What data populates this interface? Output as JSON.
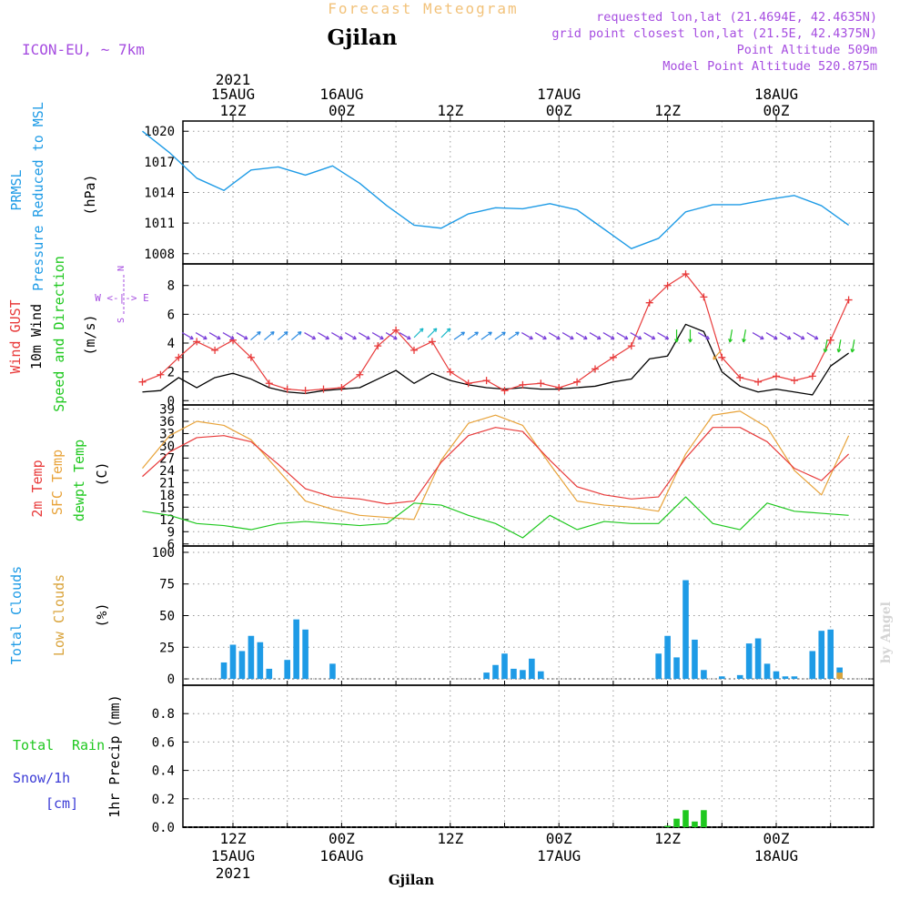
{
  "header": {
    "product_title": "Forecast Meteogram",
    "location": "Gjilan",
    "model": "ICON-EU, ~ 7km",
    "requested": "requested lon,lat (21.4694E, 42.4635N)",
    "grid_point": "grid point closest lon,lat (21.5E, 42.4375N)",
    "point_alt": "Point Altitude 509m",
    "model_alt": "Model Point Altitude 520.875m",
    "watermark": "by Angel",
    "bottom_label": "Gjilan"
  },
  "time_axis": {
    "year": "2021",
    "top_ticks": [
      {
        "hour": 12,
        "t1": "15AUG",
        "t2": "12Z",
        "year": true
      },
      {
        "hour": 24,
        "t1": "16AUG",
        "t2": "00Z"
      },
      {
        "hour": 36,
        "t1": "",
        "t2": "12Z"
      },
      {
        "hour": 48,
        "t1": "17AUG",
        "t2": "00Z"
      },
      {
        "hour": 60,
        "t1": "",
        "t2": "12Z"
      },
      {
        "hour": 72,
        "t1": "18AUG",
        "t2": "00Z"
      }
    ],
    "bottom_ticks": [
      {
        "hour": 12,
        "t1": "12Z",
        "t2": "15AUG",
        "year": true
      },
      {
        "hour": 24,
        "t1": "00Z",
        "t2": "16AUG"
      },
      {
        "hour": 36,
        "t1": "12Z",
        "t2": ""
      },
      {
        "hour": 48,
        "t1": "00Z",
        "t2": "17AUG"
      },
      {
        "hour": 60,
        "t1": "12Z",
        "t2": ""
      },
      {
        "hour": 72,
        "t1": "00Z",
        "t2": "18AUG"
      }
    ]
  },
  "panels": {
    "pressure": {
      "l1": "PRMSL",
      "l2": "Pressure Reduced to MSL",
      "unit": "(hPa)"
    },
    "wind": {
      "l1": "Wind GUST",
      "l2": "10m Wind",
      "l3": "Speed and Direction",
      "unit": "(m/s)",
      "compass_n": "N",
      "compass_s": "S",
      "compass_we": "W <-|-> E"
    },
    "temp": {
      "l1": "2m Temp",
      "l2": "SFC Temp",
      "l3": "dewpt Temp",
      "unit": "(C)"
    },
    "clouds": {
      "l1": "Total Clouds",
      "l2": "Low Clouds",
      "unit": "(%)"
    },
    "precip": {
      "l1": "Total",
      "l1b": "Rain",
      "l2": "Snow/1h",
      "l3": "[cm]",
      "unit": "1hr Precip (mm)"
    }
  },
  "colors": {
    "pressure": "#1e9be6",
    "gust": "#e83a3a",
    "wind": "#000000",
    "sfc": "#e8a33a",
    "t2m": "#e83a3a",
    "dewpt": "#1fc81f",
    "total_clouds": "#1e9be6",
    "low_clouds": "#d9a33a",
    "rain": "#1fc81f",
    "snow": "#3b3bd6",
    "purple": "#a64de0",
    "title_orange": "#f2c27a"
  },
  "chart_data": [
    {
      "type": "line",
      "id": "pressure",
      "ylabel": "(hPa)",
      "ylim": [
        1007,
        1021
      ],
      "yticks": [
        1008,
        1011,
        1014,
        1017,
        1020
      ],
      "grid": true,
      "x_hours": [
        2,
        5,
        8,
        11,
        14,
        17,
        20,
        23,
        26,
        29,
        32,
        35,
        38,
        41,
        44,
        47,
        50,
        53,
        56,
        59,
        62,
        65,
        68,
        71,
        74,
        77,
        80
      ],
      "series": [
        {
          "name": "PRMSL",
          "values": [
            1020.0,
            1017.9,
            1015.4,
            1014.2,
            1016.2,
            1016.5,
            1015.7,
            1016.6,
            1014.9,
            1012.7,
            1010.8,
            1010.5,
            1011.9,
            1012.5,
            1012.4,
            1012.9,
            1012.3,
            1010.4,
            1008.5,
            1009.5,
            1012.1,
            1012.8,
            1012.8,
            1013.3,
            1013.7,
            1012.7,
            1010.8
          ]
        }
      ]
    },
    {
      "type": "line",
      "id": "wind",
      "ylabel": "(m/s)",
      "ylim": [
        -0.3,
        9.5
      ],
      "yticks": [
        0,
        2,
        4,
        6,
        8
      ],
      "grid": true,
      "x_hours": [
        2,
        4,
        6,
        8,
        10,
        12,
        14,
        16,
        18,
        20,
        22,
        24,
        26,
        28,
        30,
        32,
        34,
        36,
        38,
        40,
        42,
        44,
        46,
        48,
        50,
        52,
        54,
        56,
        58,
        60,
        62,
        64,
        66,
        68,
        70,
        72,
        74,
        76,
        78,
        80
      ],
      "series": [
        {
          "name": "Wind GUST",
          "values": [
            1.3,
            1.8,
            3.0,
            4.1,
            3.5,
            4.2,
            3.0,
            1.2,
            0.8,
            0.7,
            0.8,
            0.9,
            1.8,
            3.8,
            4.9,
            3.5,
            4.1,
            2.0,
            1.2,
            1.4,
            0.7,
            1.1,
            1.2,
            0.9,
            1.3,
            2.2,
            3.0,
            3.8,
            6.8,
            8.0,
            8.8,
            7.2,
            3.0,
            1.6,
            1.3,
            1.7,
            1.4,
            1.7,
            4.2,
            7.0
          ]
        },
        {
          "name": "10m Wind",
          "values": [
            0.6,
            0.7,
            1.6,
            0.9,
            1.6,
            1.9,
            1.5,
            0.9,
            0.6,
            0.5,
            0.7,
            0.8,
            0.9,
            1.5,
            2.1,
            1.2,
            1.9,
            1.4,
            1.1,
            0.9,
            0.8,
            0.9,
            0.8,
            0.8,
            0.9,
            1.0,
            1.3,
            1.5,
            2.9,
            3.1,
            5.3,
            4.8,
            2.0,
            1.0,
            0.6,
            0.8,
            0.6,
            0.4,
            2.4,
            3.3
          ]
        }
      ]
    },
    {
      "type": "line",
      "id": "temperature",
      "ylabel": "(C)",
      "ylim": [
        5.5,
        40
      ],
      "yticks": [
        6,
        9,
        12,
        15,
        18,
        21,
        24,
        27,
        30,
        33,
        36,
        39
      ],
      "grid": true,
      "x_hours": [
        2,
        5,
        8,
        11,
        14,
        17,
        20,
        23,
        26,
        29,
        32,
        35,
        38,
        41,
        44,
        47,
        50,
        53,
        56,
        59,
        62,
        65,
        68,
        71,
        74,
        77,
        80
      ],
      "series": [
        {
          "name": "2m Temp",
          "values": [
            22.5,
            28.5,
            32.0,
            32.5,
            31.0,
            25.5,
            19.5,
            17.5,
            17.0,
            15.8,
            16.5,
            26.0,
            32.5,
            34.5,
            33.5,
            26.5,
            20.0,
            18.0,
            17.0,
            17.5,
            27.0,
            34.5,
            34.5,
            31.0,
            24.5,
            21.5,
            28.0
          ]
        },
        {
          "name": "SFC Temp",
          "values": [
            24.5,
            32.5,
            36.0,
            35.0,
            31.5,
            24.0,
            16.5,
            14.5,
            13.0,
            12.5,
            12.0,
            26.5,
            35.5,
            37.5,
            35.0,
            25.5,
            16.5,
            15.5,
            15.0,
            14.0,
            28.0,
            37.5,
            38.5,
            34.5,
            24.0,
            18.0,
            32.5
          ]
        },
        {
          "name": "dewpt Temp",
          "values": [
            14.0,
            13.0,
            11.0,
            10.5,
            9.5,
            11.0,
            11.5,
            11.0,
            10.5,
            11.0,
            16.0,
            15.5,
            13.0,
            11.0,
            7.5,
            13.0,
            9.5,
            11.5,
            11.0,
            11.0,
            17.5,
            11.0,
            9.5,
            16.0,
            14.0,
            13.5,
            13.0
          ]
        }
      ]
    },
    {
      "type": "bar",
      "id": "clouds",
      "ylabel": "(%)",
      "ylim": [
        -5,
        105
      ],
      "yticks": [
        0,
        25,
        50,
        75,
        100
      ],
      "grid": true,
      "x_hours": [
        11,
        12,
        13,
        14,
        15,
        16,
        18,
        19,
        20,
        23,
        40,
        41,
        42,
        43,
        44,
        45,
        46,
        59,
        60,
        61,
        62,
        63,
        64,
        66,
        68,
        69,
        70,
        71,
        72,
        73,
        74,
        76,
        77,
        78,
        79
      ],
      "series": [
        {
          "name": "Total Clouds",
          "values": [
            13,
            27,
            22,
            34,
            29,
            8,
            15,
            47,
            39,
            12,
            5,
            11,
            20,
            8,
            7,
            16,
            6,
            20,
            34,
            17,
            78,
            31,
            7,
            2,
            3,
            28,
            32,
            12,
            6,
            2,
            2,
            22,
            38,
            39,
            9
          ]
        },
        {
          "name": "Low Clouds",
          "values": [
            0,
            0,
            0,
            0,
            0,
            0,
            0,
            0,
            0,
            0,
            0,
            0,
            0,
            0,
            0,
            0,
            0,
            0,
            0,
            0,
            0,
            0,
            0,
            0,
            0,
            0,
            0,
            0,
            0,
            0,
            0,
            0,
            0,
            0,
            5
          ]
        }
      ]
    },
    {
      "type": "bar",
      "id": "precip",
      "ylabel": "1hr Precip (mm)",
      "ylim": [
        0,
        1.0
      ],
      "yticks": [
        0,
        0.2,
        0.4,
        0.6,
        0.8
      ],
      "grid": true,
      "x_hours": [
        60,
        61,
        62,
        63,
        64
      ],
      "series": [
        {
          "name": "Total Rain",
          "values": [
            0.01,
            0.06,
            0.12,
            0.04,
            0.12
          ]
        }
      ]
    }
  ]
}
